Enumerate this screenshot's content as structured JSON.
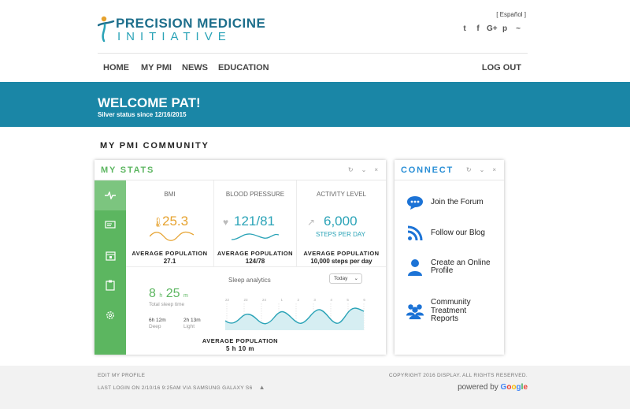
{
  "header": {
    "logo_line1": "PRECISION MEDICINE",
    "logo_line2": "INITIATIVE",
    "language_link": "[ Español ]",
    "social_icons": [
      "twitter-icon",
      "facebook-icon",
      "google-plus-icon",
      "pinterest-icon",
      "rss-icon"
    ],
    "social_glyphs": [
      "t",
      "f",
      "G+",
      "p",
      "~"
    ]
  },
  "nav": {
    "items": [
      "HOME",
      "MY PMI",
      "NEWS",
      "EDUCATION"
    ],
    "logout": "LOG OUT"
  },
  "banner": {
    "welcome": "WELCOME PAT!",
    "status": "Silver status since 12/16/2015"
  },
  "community": {
    "title": "MY PMI COMMUNITY"
  },
  "stats_card": {
    "title": "MY STATS",
    "title_color": "#5cb660",
    "bmi": {
      "label": "BMI",
      "value": "25.3",
      "avg_label": "AVERAGE POPULATION",
      "avg_value": "27.1",
      "color": "#e6a22e"
    },
    "blood_pressure": {
      "label": "BLOOD PRESSURE",
      "value": "121/81",
      "avg_label": "AVERAGE POPULATION",
      "avg_value": "124/78",
      "color": "#2aa3b7"
    },
    "activity": {
      "label": "ACTIVITY LEVEL",
      "value": "6,000",
      "unit": "STEPS PER DAY",
      "avg_label": "AVERAGE POPULATION",
      "avg_value": "10,000 steps per day",
      "color": "#2aa3b7"
    },
    "sleep": {
      "title": "Sleep analytics",
      "range": "Today",
      "hours": "8",
      "h_unit": "h",
      "minutes": "25",
      "m_unit": "m",
      "total_label": "Total sleep time",
      "deep_value": "6h 12m",
      "deep_label": "Deep",
      "light_value": "2h 13m",
      "light_label": "Light",
      "ticks": [
        "22",
        "23",
        "24",
        "1",
        "2",
        "3",
        "4",
        "5",
        "6"
      ],
      "avg_label": "AVERAGE POPULATION",
      "avg_value": "5 h 10 m"
    }
  },
  "connect_card": {
    "title": "CONNECT",
    "title_color": "#2a8fd6",
    "items": [
      {
        "label": "Join the Forum",
        "icon": "chat-icon"
      },
      {
        "label": "Follow our Blog",
        "icon": "rss-icon"
      },
      {
        "label": "Create an Online Profile",
        "icon": "user-icon"
      },
      {
        "label": "Community Treatment Reports",
        "icon": "group-icon"
      }
    ]
  },
  "footer": {
    "edit_profile": "EDIT MY PROFILE",
    "last_login": "LAST LOGIN ON 2/10/16 9:25AM VIA SAMSUNG GALAXY S6",
    "copyright": "COPYRIGHT 2016 DISPLAY. ALL RIGHTS RESERVED.",
    "powered_by": "powered by",
    "google": "Google"
  }
}
